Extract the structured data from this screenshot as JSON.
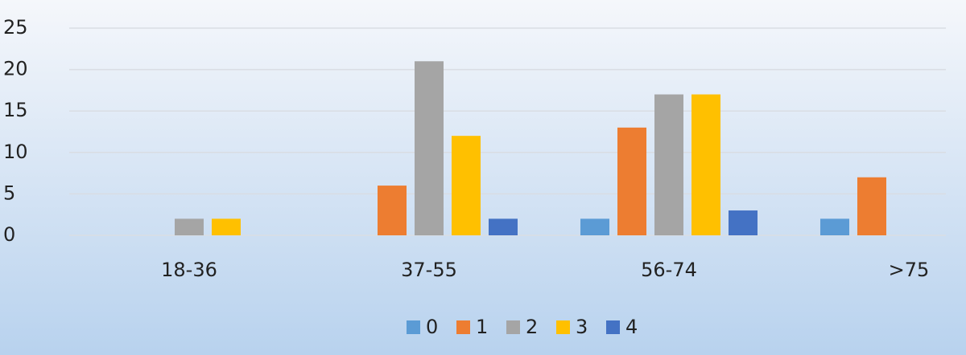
{
  "chart_data": {
    "type": "bar",
    "categories": [
      "18-36",
      "37-55",
      "56-74",
      ">75"
    ],
    "series": [
      {
        "name": "0",
        "color": "#5b9bd5",
        "values": [
          0,
          0,
          2,
          2
        ]
      },
      {
        "name": "1",
        "color": "#ed7d31",
        "values": [
          0,
          6,
          13,
          7
        ]
      },
      {
        "name": "2",
        "color": "#a5a5a5",
        "values": [
          2,
          21,
          17,
          0
        ]
      },
      {
        "name": "3",
        "color": "#ffc000",
        "values": [
          2,
          12,
          17,
          0
        ]
      },
      {
        "name": "4",
        "color": "#4472c4",
        "values": [
          0,
          2,
          3,
          0
        ]
      }
    ],
    "ylim": [
      0,
      25
    ],
    "yticks": [
      0,
      5,
      10,
      15,
      20,
      25
    ],
    "grid": true,
    "legend": "bottom"
  }
}
